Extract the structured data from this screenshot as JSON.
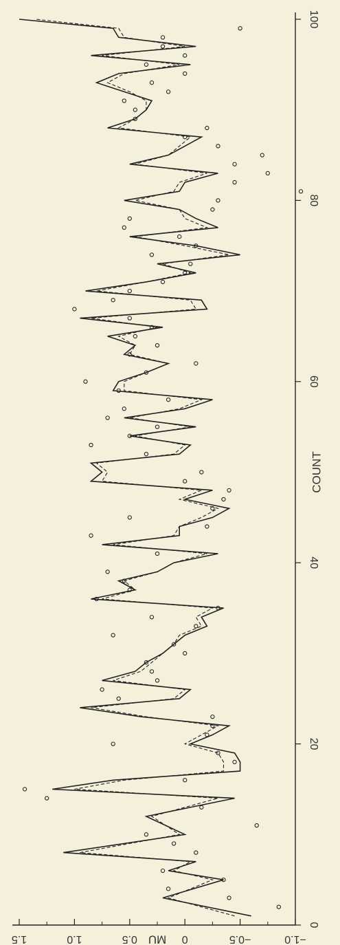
{
  "chart_data": {
    "type": "line",
    "orientation": "rotated-90-clockwise",
    "xlabel": "COUNT",
    "ylabel": "MU",
    "xlim": [
      0,
      100
    ],
    "ylim": [
      -1.0,
      1.5
    ],
    "x_ticks": [
      0,
      20,
      40,
      60,
      80,
      100
    ],
    "y_ticks": [
      -1.0,
      -0.5,
      0,
      0.5,
      1.0,
      1.5
    ],
    "y_tick_labels": [
      "−1.0",
      "−0.5",
      "0",
      "0.5",
      "1.0",
      "1.5"
    ],
    "grid": false,
    "series": [
      {
        "style": "solid",
        "x": [
          1,
          3,
          5,
          6,
          7,
          8,
          10,
          12,
          14,
          15,
          16,
          17,
          18,
          19,
          20,
          21,
          22,
          23,
          24,
          25,
          26,
          27,
          28,
          29,
          30,
          31,
          32,
          33,
          34,
          35,
          36,
          37,
          38,
          39,
          40,
          41,
          42,
          43,
          44,
          45,
          46,
          47,
          48,
          49,
          50,
          51,
          52,
          53,
          54,
          55,
          56,
          57,
          58,
          59,
          60,
          61,
          62,
          63,
          64,
          65,
          66,
          67,
          68,
          69,
          70,
          71,
          72,
          73,
          74,
          75,
          76,
          77,
          78,
          79,
          80,
          81,
          82,
          83,
          84,
          85,
          86,
          87,
          88,
          89,
          90,
          91,
          92,
          93,
          94,
          95,
          96,
          97,
          98,
          99,
          100
        ],
        "y": [
          -0.6,
          0.2,
          -0.35,
          0.15,
          -0.1,
          1.1,
          0.0,
          0.35,
          -0.45,
          1.2,
          0.65,
          -0.5,
          -0.5,
          -0.45,
          -0.05,
          -0.25,
          -0.4,
          0.4,
          0.95,
          0.05,
          -0.05,
          0.75,
          0.45,
          0.35,
          0.2,
          0.1,
          0.0,
          -0.2,
          -0.15,
          -0.35,
          0.85,
          0.45,
          0.6,
          0.25,
          0.1,
          -0.3,
          0.75,
          0.05,
          0.05,
          -0.25,
          -0.4,
          0.0,
          -0.25,
          0.85,
          0.75,
          0.85,
          0.05,
          -0.05,
          0.5,
          -0.1,
          0.55,
          0.0,
          -0.25,
          0.65,
          0.6,
          0.35,
          0.15,
          0.55,
          0.45,
          0.7,
          0.2,
          0.95,
          -0.2,
          -0.15,
          0.9,
          0.35,
          -0.1,
          0.25,
          -0.5,
          -0.1,
          0.5,
          -0.3,
          -0.1,
          0.05,
          0.55,
          0.05,
          0.0,
          -0.3,
          0.5,
          0.15,
          0.0,
          -0.15,
          0.7,
          0.45,
          0.35,
          0.3,
          0.55,
          0.8,
          0.6,
          -0.05,
          0.85,
          -0.1,
          0.6,
          0.65,
          1.5
        ]
      },
      {
        "style": "dashed",
        "x": [
          1,
          3,
          5,
          6,
          7,
          8,
          10,
          12,
          14,
          15,
          16,
          17,
          18,
          19,
          20,
          21,
          22,
          23,
          24,
          25,
          26,
          27,
          28,
          29,
          30,
          31,
          32,
          33,
          34,
          35,
          36,
          37,
          38,
          39,
          40,
          41,
          42,
          43,
          44,
          45,
          46,
          47,
          48,
          49,
          50,
          51,
          52,
          53,
          54,
          55,
          56,
          57,
          58,
          59,
          60,
          61,
          62,
          63,
          64,
          65,
          66,
          67,
          68,
          69,
          70,
          71,
          72,
          73,
          74,
          75,
          76,
          77,
          78,
          79,
          80,
          81,
          82,
          83,
          84,
          85,
          86,
          87,
          88,
          89,
          90,
          91,
          92,
          93,
          94,
          95,
          96,
          97,
          98,
          99,
          100
        ],
        "y": [
          -0.45,
          0.15,
          -0.25,
          0.1,
          -0.05,
          0.95,
          0.05,
          0.3,
          -0.3,
          1.0,
          0.55,
          -0.35,
          -0.35,
          -0.3,
          0.0,
          -0.15,
          -0.3,
          0.35,
          0.85,
          0.1,
          0.0,
          0.65,
          0.4,
          0.3,
          0.2,
          0.1,
          0.05,
          -0.15,
          -0.1,
          -0.25,
          0.75,
          0.45,
          0.55,
          0.25,
          0.1,
          -0.2,
          0.65,
          0.1,
          0.05,
          -0.15,
          -0.3,
          0.05,
          -0.15,
          0.75,
          0.7,
          0.8,
          0.1,
          0.0,
          0.45,
          -0.05,
          0.5,
          0.05,
          -0.15,
          0.55,
          0.55,
          0.35,
          0.15,
          0.5,
          0.45,
          0.6,
          0.25,
          0.85,
          -0.1,
          -0.05,
          0.8,
          0.35,
          -0.05,
          0.2,
          -0.4,
          0.0,
          0.45,
          -0.2,
          0.0,
          0.05,
          0.45,
          0.1,
          0.05,
          -0.2,
          0.45,
          0.15,
          0.05,
          -0.05,
          0.6,
          0.45,
          0.35,
          0.35,
          0.5,
          0.7,
          0.55,
          0.05,
          0.75,
          0.0,
          0.55,
          0.6,
          1.35
        ]
      },
      {
        "style": "points",
        "x": [
          2,
          3,
          4,
          5,
          6,
          8,
          9,
          10,
          11,
          13,
          14,
          15,
          16,
          18,
          19,
          20,
          21,
          22,
          23,
          25,
          26,
          27,
          28,
          29,
          30,
          31,
          32,
          33,
          34,
          35,
          36,
          37,
          38,
          39,
          41,
          43,
          44,
          45,
          46,
          47,
          48,
          49,
          50,
          52,
          53,
          54,
          55,
          56,
          57,
          58,
          59,
          60,
          61,
          62,
          63,
          64,
          65,
          66,
          67,
          68,
          69,
          70,
          71,
          72,
          73,
          74,
          75,
          76,
          77,
          78,
          79,
          80,
          81,
          82,
          83,
          84,
          85,
          86,
          87,
          88,
          89,
          90,
          91,
          92,
          93,
          94,
          95,
          96,
          97,
          98,
          99
        ],
        "y": [
          -0.85,
          -0.4,
          0.15,
          -0.35,
          0.2,
          -0.1,
          0.1,
          0.35,
          -0.65,
          -0.15,
          1.25,
          1.45,
          0.0,
          -0.45,
          -0.3,
          0.65,
          -0.2,
          -0.25,
          -0.25,
          0.6,
          0.75,
          0.25,
          0.3,
          0.35,
          0.0,
          0.1,
          0.65,
          -0.1,
          0.3,
          -0.3,
          0.8,
          0.5,
          0.55,
          0.7,
          0.25,
          0.85,
          -0.2,
          0.5,
          -0.25,
          -0.35,
          -0.4,
          0.0,
          -0.15,
          0.35,
          0.85,
          0.5,
          0.25,
          0.7,
          0.55,
          0.15,
          0.6,
          0.9,
          0.35,
          -0.1,
          0.5,
          0.25,
          0.45,
          0.3,
          0.5,
          1.0,
          0.65,
          0.5,
          0.2,
          0.0,
          -0.05,
          0.3,
          -0.1,
          0.05,
          0.55,
          0.5,
          -0.25,
          -0.3,
          -1.05,
          -0.45,
          -0.75,
          -0.45,
          -0.7,
          -0.3,
          0.0,
          -0.2,
          0.45,
          0.45,
          0.55,
          0.15,
          0.3,
          0.0,
          0.35,
          0.0,
          0.2,
          0.2,
          -0.5
        ]
      }
    ]
  }
}
